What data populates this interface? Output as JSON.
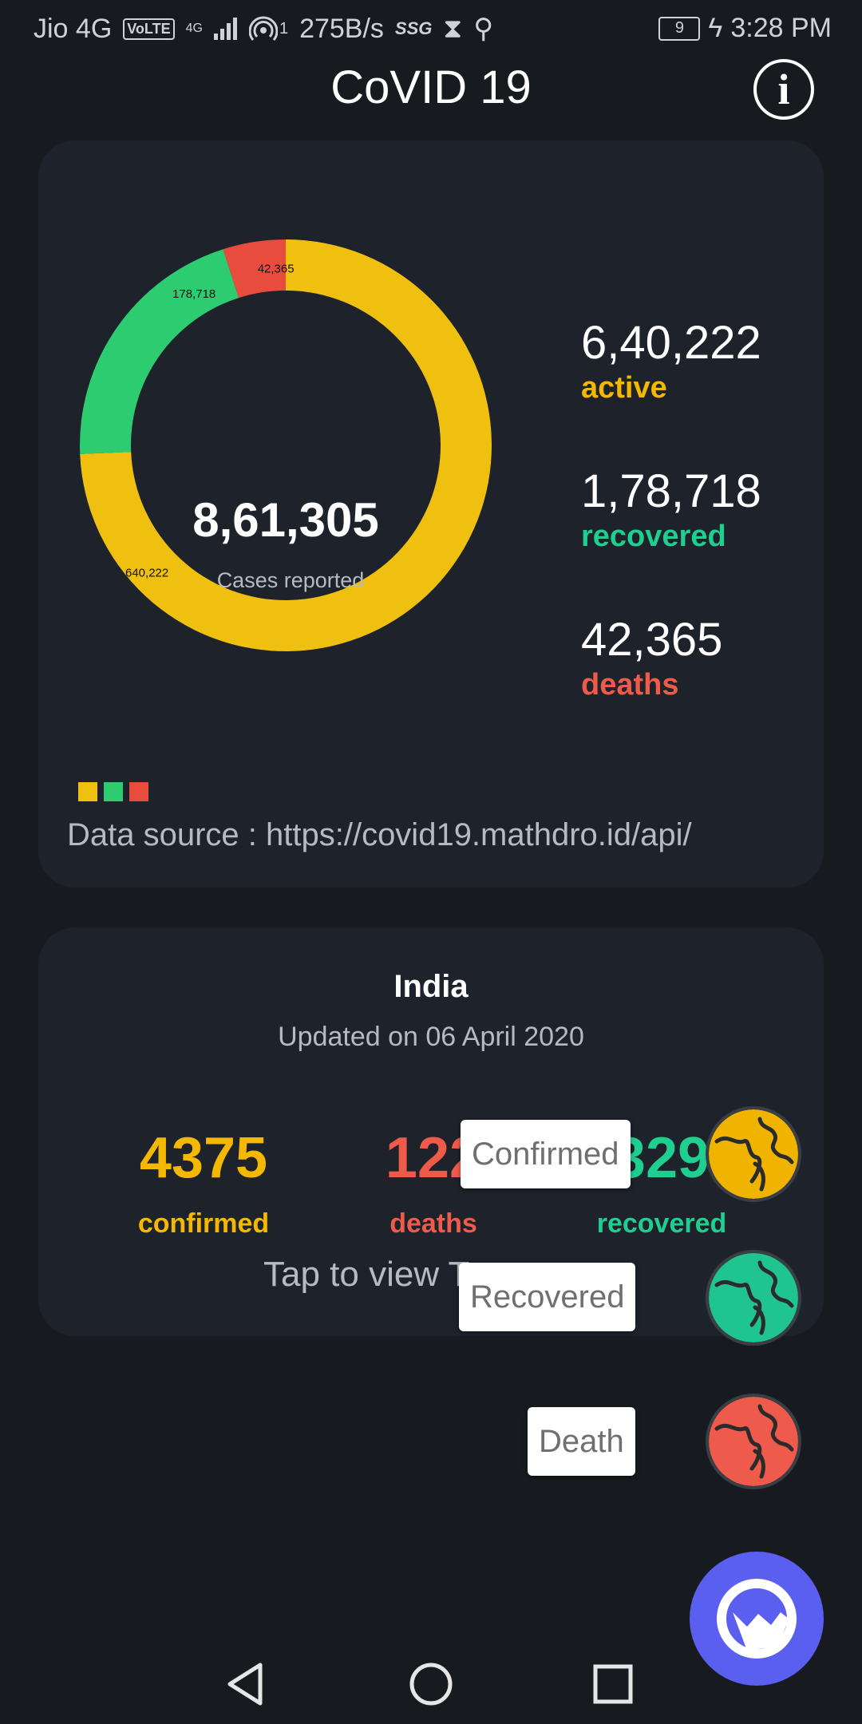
{
  "status_bar": {
    "carrier": "Jio 4G",
    "volte": "VoLTE",
    "signal": "4G",
    "hotspot_count": "1",
    "speed": "275B/s",
    "ssg": "SSG",
    "battery": "9",
    "time": "3:28 PM"
  },
  "header": {
    "title": "CoVID 19"
  },
  "global": {
    "total": "8,61,305",
    "total_label": "Cases reported",
    "active_value": "6,40,222",
    "active_label": "active",
    "recovered_value": "1,78,718",
    "recovered_label": "recovered",
    "deaths_value": "42,365",
    "deaths_label": "deaths",
    "source": "Data source : https://covid19.mathdro.id/api/"
  },
  "chart_data": {
    "type": "pie",
    "title": "",
    "categories": [
      "active",
      "recovered",
      "deaths"
    ],
    "values": [
      640222,
      178718,
      42365
    ],
    "data_labels": [
      "640,222",
      "178,718",
      "42,365"
    ],
    "colors": [
      "#f0c010",
      "#2ecc71",
      "#e74c3c"
    ],
    "donut": true,
    "legend_placement": "bottom-left"
  },
  "country": {
    "name": "India",
    "updated": "Updated on 06 April 2020",
    "confirmed_value": "4375",
    "confirmed_label": "confirmed",
    "deaths_value": "122",
    "deaths_label": "deaths",
    "recovered_value": "329",
    "recovered_label": "recovered",
    "tap_hint": "Tap to view T"
  },
  "fab_menu": {
    "confirmed_label": "Confirmed",
    "recovered_label": "Recovered",
    "death_label": "Death",
    "confirmed_color": "#f0b400",
    "recovered_color": "#1fc48f",
    "death_color": "#ee5a4c",
    "main_color": "#5a5ff0"
  },
  "colors": {
    "active": "#f5b800",
    "recovered": "#1fcf8f",
    "deaths": "#ef5b4b",
    "background": "#171b20",
    "card": "#1d222b"
  },
  "nav": {
    "back_icon": "back-icon",
    "home_icon": "home-icon",
    "recents_icon": "recents-icon"
  }
}
